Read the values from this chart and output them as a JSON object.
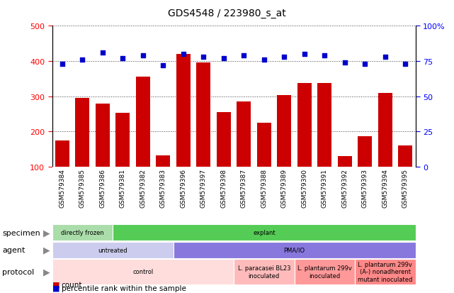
{
  "title": "GDS4548 / 223980_s_at",
  "samples": [
    "GSM579384",
    "GSM579385",
    "GSM579386",
    "GSM579381",
    "GSM579382",
    "GSM579383",
    "GSM579396",
    "GSM579397",
    "GSM579398",
    "GSM579387",
    "GSM579388",
    "GSM579389",
    "GSM579390",
    "GSM579391",
    "GSM579392",
    "GSM579393",
    "GSM579394",
    "GSM579395"
  ],
  "counts": [
    175,
    295,
    280,
    253,
    355,
    133,
    420,
    395,
    254,
    285,
    225,
    303,
    338,
    337,
    131,
    186,
    310,
    160
  ],
  "percentiles": [
    73,
    76,
    81,
    77,
    79,
    72,
    80,
    78,
    77,
    79,
    76,
    78,
    80,
    79,
    74,
    73,
    78,
    73
  ],
  "ylim_left": [
    100,
    500
  ],
  "ylim_right": [
    0,
    100
  ],
  "yticks_left": [
    100,
    200,
    300,
    400,
    500
  ],
  "yticks_right": [
    0,
    25,
    50,
    75,
    100
  ],
  "bar_color": "#cc0000",
  "dot_color": "#0000cc",
  "specimen_row": {
    "label": "specimen",
    "groups": [
      {
        "text": "directly frozen",
        "start": 0,
        "end": 3,
        "color": "#aaddaa"
      },
      {
        "text": "explant",
        "start": 3,
        "end": 18,
        "color": "#55cc55"
      }
    ]
  },
  "agent_row": {
    "label": "agent",
    "groups": [
      {
        "text": "untreated",
        "start": 0,
        "end": 6,
        "color": "#ccccee"
      },
      {
        "text": "PMA/IO",
        "start": 6,
        "end": 18,
        "color": "#8877dd"
      }
    ]
  },
  "protocol_row": {
    "label": "protocol",
    "groups": [
      {
        "text": "control",
        "start": 0,
        "end": 9,
        "color": "#ffdddd"
      },
      {
        "text": "L. paracasei BL23\ninoculated",
        "start": 9,
        "end": 12,
        "color": "#ffbbbb"
      },
      {
        "text": "L. plantarum 299v\ninoculated",
        "start": 12,
        "end": 15,
        "color": "#ff9999"
      },
      {
        "text": "L. plantarum 299v\n(A-) nonadherent\nmutant inoculated",
        "start": 15,
        "end": 18,
        "color": "#ff8888"
      }
    ]
  },
  "legend_count_color": "#cc0000",
  "legend_dot_color": "#0000cc",
  "bg_color": "#ffffff",
  "tick_bg_color": "#cccccc"
}
